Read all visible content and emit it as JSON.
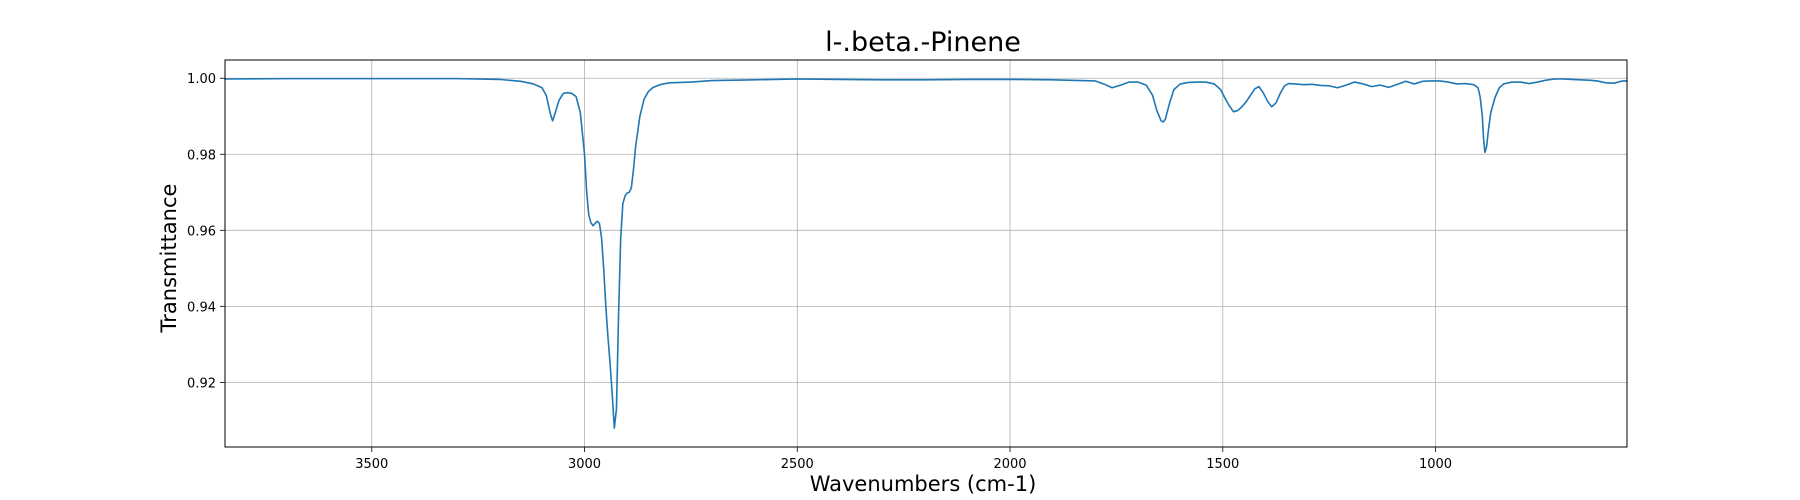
{
  "chart_data": {
    "type": "line",
    "title": "l-.beta.-Pinene",
    "xlabel": "Wavenumbers (cm-1)",
    "ylabel": "Transmittance",
    "xlim": [
      3845,
      550
    ],
    "ylim": [
      0.903,
      1.0048
    ],
    "x_reversed": true,
    "grid": true,
    "x_ticks": [
      3500,
      3000,
      2500,
      2000,
      1500,
      1000
    ],
    "y_ticks": [
      0.92,
      0.94,
      0.96,
      0.98,
      1.0
    ],
    "x_tick_labels": [
      "3500",
      "3000",
      "2500",
      "2000",
      "1500",
      "1000"
    ],
    "y_tick_labels": [
      "0.92",
      "0.94",
      "0.96",
      "0.98",
      "1.00"
    ],
    "series": [
      {
        "color": "#1f77b4",
        "x": [
          3845,
          3700,
          3600,
          3500,
          3400,
          3300,
          3200,
          3150,
          3120,
          3100,
          3090,
          3080,
          3075,
          3070,
          3060,
          3050,
          3040,
          3030,
          3020,
          3010,
          3000,
          2995,
          2990,
          2985,
          2980,
          2975,
          2970,
          2965,
          2960,
          2955,
          2950,
          2945,
          2940,
          2935,
          2930,
          2925,
          2920,
          2915,
          2910,
          2905,
          2900,
          2895,
          2890,
          2885,
          2880,
          2870,
          2860,
          2850,
          2840,
          2830,
          2820,
          2800,
          2750,
          2700,
          2600,
          2500,
          2400,
          2300,
          2200,
          2100,
          2000,
          1900,
          1800,
          1780,
          1760,
          1740,
          1720,
          1700,
          1680,
          1665,
          1655,
          1645,
          1640,
          1635,
          1625,
          1615,
          1600,
          1580,
          1560,
          1540,
          1520,
          1505,
          1495,
          1485,
          1475,
          1465,
          1455,
          1445,
          1435,
          1425,
          1415,
          1405,
          1395,
          1385,
          1375,
          1365,
          1355,
          1345,
          1330,
          1310,
          1290,
          1270,
          1250,
          1230,
          1210,
          1190,
          1170,
          1150,
          1130,
          1110,
          1090,
          1070,
          1050,
          1030,
          1010,
          990,
          970,
          950,
          930,
          910,
          900,
          895,
          890,
          887,
          884,
          880,
          875,
          870,
          860,
          850,
          840,
          820,
          800,
          780,
          760,
          740,
          720,
          700,
          680,
          660,
          640,
          620,
          600,
          580,
          560,
          550
        ],
        "y": [
          0.9998,
          0.9999,
          0.9999,
          0.9999,
          0.9999,
          0.9999,
          0.9997,
          0.9992,
          0.9985,
          0.9975,
          0.9955,
          0.9905,
          0.9888,
          0.9905,
          0.9942,
          0.996,
          0.9962,
          0.996,
          0.9952,
          0.991,
          0.98,
          0.97,
          0.964,
          0.962,
          0.9612,
          0.9618,
          0.9624,
          0.9618,
          0.958,
          0.95,
          0.94,
          0.932,
          0.925,
          0.917,
          0.908,
          0.913,
          0.938,
          0.958,
          0.967,
          0.969,
          0.9698,
          0.97,
          0.9712,
          0.976,
          0.982,
          0.99,
          0.9945,
          0.9965,
          0.9975,
          0.998,
          0.9984,
          0.9988,
          0.999,
          0.9994,
          0.9996,
          0.9998,
          0.9997,
          0.9996,
          0.9996,
          0.9997,
          0.9997,
          0.9996,
          0.9993,
          0.9985,
          0.9975,
          0.9982,
          0.999,
          0.999,
          0.9982,
          0.9955,
          0.9915,
          0.9888,
          0.9885,
          0.9892,
          0.9935,
          0.997,
          0.9985,
          0.9989,
          0.999,
          0.999,
          0.9985,
          0.997,
          0.9948,
          0.9928,
          0.9912,
          0.9915,
          0.9925,
          0.9938,
          0.9955,
          0.9972,
          0.9978,
          0.9962,
          0.994,
          0.9925,
          0.9935,
          0.996,
          0.998,
          0.9986,
          0.9985,
          0.9983,
          0.9984,
          0.9981,
          0.998,
          0.9975,
          0.9982,
          0.999,
          0.9985,
          0.9978,
          0.9982,
          0.9976,
          0.9984,
          0.9992,
          0.9985,
          0.9992,
          0.9993,
          0.9993,
          0.999,
          0.9985,
          0.9986,
          0.9983,
          0.9975,
          0.995,
          0.99,
          0.984,
          0.9805,
          0.982,
          0.987,
          0.991,
          0.995,
          0.9975,
          0.9985,
          0.999,
          0.999,
          0.9986,
          0.999,
          0.9995,
          0.9998,
          0.9998,
          0.9997,
          0.9996,
          0.9995,
          0.9993,
          0.9988,
          0.9987,
          0.9993,
          0.9993
        ]
      }
    ]
  }
}
